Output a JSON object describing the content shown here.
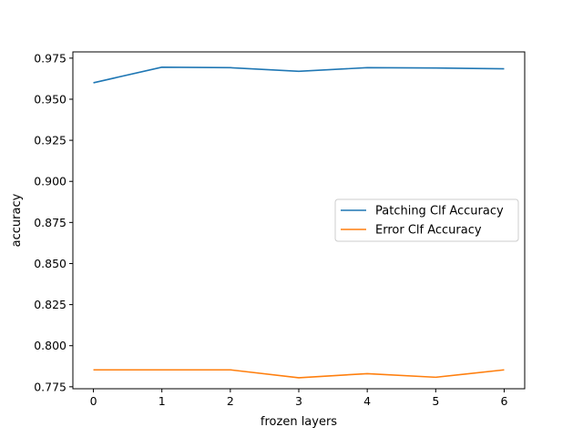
{
  "chart_data": {
    "type": "line",
    "title": "",
    "xlabel": "frozen layers",
    "ylabel": "accuracy",
    "x": [
      0,
      1,
      2,
      3,
      4,
      5,
      6
    ],
    "xticks": [
      "0",
      "1",
      "2",
      "3",
      "4",
      "5",
      "6"
    ],
    "yticks": [
      "0.775",
      "0.800",
      "0.825",
      "0.850",
      "0.875",
      "0.900",
      "0.925",
      "0.950",
      "0.975"
    ],
    "xlim": [
      -0.3,
      6.3
    ],
    "ylim": [
      0.7738,
      0.9788
    ],
    "grid": false,
    "legend": "center-right",
    "series": [
      {
        "name": "Patching Clf Accuracy",
        "color": "#1f77b4",
        "values": [
          0.96,
          0.9695,
          0.9692,
          0.967,
          0.9692,
          0.969,
          0.9685
        ]
      },
      {
        "name": "Error Clf Accuracy",
        "color": "#ff7f0e",
        "values": [
          0.7853,
          0.7853,
          0.7853,
          0.7805,
          0.783,
          0.7808,
          0.7853
        ]
      }
    ]
  }
}
